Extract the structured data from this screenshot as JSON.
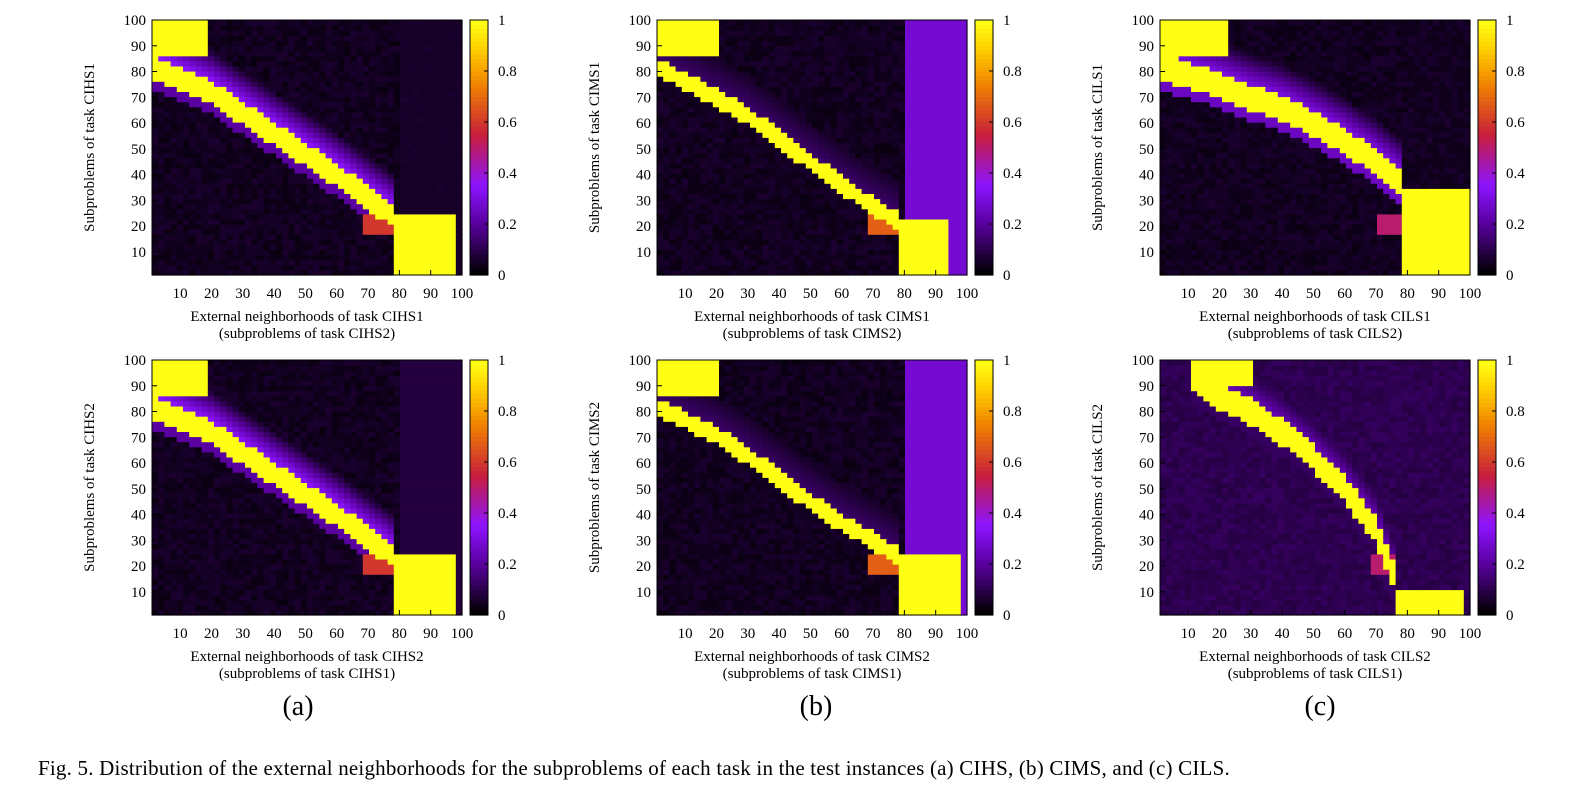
{
  "figure": {
    "caption": "Fig. 5.    Distribution of the external neighborhoods for the subproblems of each task in the test instances (a) CIHS, (b) CIMS, and (c) CILS.",
    "subfigure_labels": [
      "(a)",
      "(b)",
      "(c)"
    ]
  },
  "chart_data": [
    {
      "type": "heatmap",
      "panel": "CIHS top",
      "column": 0,
      "row": 0,
      "ylabel": "Subproblems of task CIHS1",
      "xlabel_line1": "External neighborhoods of task CIHS1",
      "xlabel_line2": "(subproblems of task CIHS2)",
      "x_ticks": [
        10,
        20,
        30,
        40,
        50,
        60,
        70,
        80,
        90,
        100
      ],
      "y_ticks": [
        10,
        20,
        30,
        40,
        50,
        60,
        70,
        80,
        90,
        100
      ],
      "xlim": [
        1,
        100
      ],
      "ylim": [
        1,
        100
      ],
      "colorbar": {
        "range": [
          0,
          1
        ],
        "ticks": [
          0,
          0.2,
          0.4,
          0.6,
          0.8,
          1
        ],
        "palette": "black-purple-orange-yellow"
      },
      "block_top": {
        "x": [
          1,
          19
        ],
        "y": [
          86,
          100
        ],
        "value": 1
      },
      "block_bottom": {
        "x": [
          79,
          98
        ],
        "y": [
          1,
          24
        ],
        "value": 1
      },
      "band_center": [
        [
          1,
          82
        ],
        [
          20,
          72
        ],
        [
          30,
          64
        ],
        [
          40,
          56
        ],
        [
          50,
          48
        ],
        [
          60,
          40
        ],
        [
          70,
          31
        ],
        [
          78,
          24
        ]
      ],
      "band_width": 9,
      "band_value": 1,
      "glow_above": 0.3,
      "glow_below": 0.2,
      "right_strip_value": 0.05,
      "corner_value": 0.6,
      "background": 0.02
    },
    {
      "type": "heatmap",
      "panel": "CIMS top",
      "column": 1,
      "row": 0,
      "ylabel": "Subproblems of task CIMS1",
      "xlabel_line1": "External neighborhoods of task CIMS1",
      "xlabel_line2": "(subproblems of task CIMS2)",
      "x_ticks": [
        10,
        20,
        30,
        40,
        50,
        60,
        70,
        80,
        90,
        100
      ],
      "y_ticks": [
        10,
        20,
        30,
        40,
        50,
        60,
        70,
        80,
        90,
        100
      ],
      "xlim": [
        1,
        100
      ],
      "ylim": [
        1,
        100
      ],
      "colorbar": {
        "range": [
          0,
          1
        ],
        "ticks": [
          0,
          0.2,
          0.4,
          0.6,
          0.8,
          1
        ],
        "palette": "black-purple-orange-yellow"
      },
      "block_top": {
        "x": [
          1,
          20
        ],
        "y": [
          86,
          100
        ],
        "value": 1
      },
      "block_bottom": {
        "x": [
          79,
          95
        ],
        "y": [
          1,
          22
        ],
        "value": 1
      },
      "band_center": [
        [
          1,
          82
        ],
        [
          20,
          70
        ],
        [
          30,
          63
        ],
        [
          40,
          54
        ],
        [
          50,
          45
        ],
        [
          60,
          36
        ],
        [
          70,
          28
        ],
        [
          78,
          22
        ]
      ],
      "band_width": 7,
      "band_value": 1,
      "glow_above": 0.08,
      "glow_below": 0.04,
      "right_strip_value": 0.28,
      "corner_value": 0.68,
      "background": 0.02
    },
    {
      "type": "heatmap",
      "panel": "CILS top",
      "column": 2,
      "row": 0,
      "ylabel": "Subproblems of task CILS1",
      "xlabel_line1": "External neighborhoods of task CILS1",
      "xlabel_line2": "(subproblems of task CILS2)",
      "x_ticks": [
        10,
        20,
        30,
        40,
        50,
        60,
        70,
        80,
        90,
        100
      ],
      "y_ticks": [
        10,
        20,
        30,
        40,
        50,
        60,
        70,
        80,
        90,
        100
      ],
      "xlim": [
        1,
        100
      ],
      "ylim": [
        1,
        100
      ],
      "colorbar": {
        "range": [
          0,
          1
        ],
        "ticks": [
          0,
          0.2,
          0.4,
          0.6,
          0.8,
          1
        ],
        "palette": "black-purple-orange-yellow"
      },
      "block_top": {
        "x": [
          1,
          22
        ],
        "y": [
          87,
          100
        ],
        "value": 1
      },
      "block_bottom": {
        "x": [
          79,
          100
        ],
        "y": [
          1,
          34
        ],
        "value": 1
      },
      "band_center": [
        [
          1,
          82
        ],
        [
          20,
          75
        ],
        [
          30,
          70
        ],
        [
          40,
          66
        ],
        [
          50,
          60
        ],
        [
          60,
          53
        ],
        [
          70,
          45
        ],
        [
          79,
          36
        ]
      ],
      "band_width": 10,
      "band_value": 1,
      "glow_above": 0.25,
      "glow_below": 0.25,
      "right_strip_value": 0.03,
      "corner_value": 0.5,
      "background": 0.02
    },
    {
      "type": "heatmap",
      "panel": "CIHS bottom",
      "column": 0,
      "row": 1,
      "ylabel": "Subproblems of task CIHS2",
      "xlabel_line1": "External neighborhoods of task CIHS2",
      "xlabel_line2": "(subproblems of task CIHS1)",
      "x_ticks": [
        10,
        20,
        30,
        40,
        50,
        60,
        70,
        80,
        90,
        100
      ],
      "y_ticks": [
        10,
        20,
        30,
        40,
        50,
        60,
        70,
        80,
        90,
        100
      ],
      "xlim": [
        1,
        100
      ],
      "ylim": [
        1,
        100
      ],
      "colorbar": {
        "range": [
          0,
          1
        ],
        "ticks": [
          0,
          0.2,
          0.4,
          0.6,
          0.8,
          1
        ],
        "palette": "black-purple-orange-yellow"
      },
      "block_top": {
        "x": [
          1,
          19
        ],
        "y": [
          86,
          100
        ],
        "value": 1
      },
      "block_bottom": {
        "x": [
          79,
          98
        ],
        "y": [
          1,
          24
        ],
        "value": 1
      },
      "band_center": [
        [
          1,
          82
        ],
        [
          20,
          72
        ],
        [
          30,
          64
        ],
        [
          40,
          56
        ],
        [
          50,
          48
        ],
        [
          60,
          40
        ],
        [
          70,
          31
        ],
        [
          78,
          24
        ]
      ],
      "band_width": 9,
      "band_value": 1,
      "glow_above": 0.3,
      "glow_below": 0.2,
      "right_strip_value": 0.08,
      "corner_value": 0.6,
      "background": 0.02
    },
    {
      "type": "heatmap",
      "panel": "CIMS bottom",
      "column": 1,
      "row": 1,
      "ylabel": "Subproblems of task CIMS2",
      "xlabel_line1": "External neighborhoods of task CIMS2",
      "xlabel_line2": "(subproblems of task CIMS1)",
      "x_ticks": [
        10,
        20,
        30,
        40,
        50,
        60,
        70,
        80,
        90,
        100
      ],
      "y_ticks": [
        10,
        20,
        30,
        40,
        50,
        60,
        70,
        80,
        90,
        100
      ],
      "xlim": [
        1,
        100
      ],
      "ylim": [
        1,
        100
      ],
      "colorbar": {
        "range": [
          0,
          1
        ],
        "ticks": [
          0,
          0.2,
          0.4,
          0.6,
          0.8,
          1
        ],
        "palette": "black-purple-orange-yellow"
      },
      "block_top": {
        "x": [
          1,
          20
        ],
        "y": [
          86,
          100
        ],
        "value": 1
      },
      "block_bottom": {
        "x": [
          79,
          98
        ],
        "y": [
          1,
          24
        ],
        "value": 1
      },
      "band_center": [
        [
          1,
          82
        ],
        [
          20,
          71
        ],
        [
          30,
          63
        ],
        [
          40,
          54
        ],
        [
          50,
          45
        ],
        [
          60,
          37
        ],
        [
          70,
          30
        ],
        [
          78,
          24
        ]
      ],
      "band_width": 7,
      "band_value": 1,
      "glow_above": 0.08,
      "glow_below": 0.04,
      "right_strip_value": 0.28,
      "corner_value": 0.68,
      "background": 0.02
    },
    {
      "type": "heatmap",
      "panel": "CILS bottom",
      "column": 2,
      "row": 1,
      "ylabel": "Subproblems of task CILS2",
      "xlabel_line1": "External neighborhoods of task CILS2",
      "xlabel_line2": "(subproblems of task CILS1)",
      "x_ticks": [
        10,
        20,
        30,
        40,
        50,
        60,
        70,
        80,
        90,
        100
      ],
      "y_ticks": [
        10,
        20,
        30,
        40,
        50,
        60,
        70,
        80,
        90,
        100
      ],
      "xlim": [
        1,
        100
      ],
      "ylim": [
        1,
        100
      ],
      "colorbar": {
        "range": [
          0,
          1
        ],
        "ticks": [
          0,
          0.2,
          0.4,
          0.6,
          0.8,
          1
        ],
        "palette": "black-purple-orange-yellow"
      },
      "block_top": {
        "x": [
          10,
          30
        ],
        "y": [
          91,
          100
        ],
        "value": 1
      },
      "block_bottom": {
        "x": [
          77,
          98
        ],
        "y": [
          1,
          10
        ],
        "value": 1
      },
      "band_center": [
        [
          10,
          94
        ],
        [
          20,
          86
        ],
        [
          30,
          80
        ],
        [
          40,
          72
        ],
        [
          50,
          62
        ],
        [
          60,
          50
        ],
        [
          70,
          34
        ],
        [
          77,
          12
        ]
      ],
      "band_width": 10,
      "band_value": 1,
      "glow_above": 0.18,
      "glow_below": 0.12,
      "right_strip_value": 0.05,
      "corner_value": 0.5,
      "background": 0.08
    }
  ]
}
